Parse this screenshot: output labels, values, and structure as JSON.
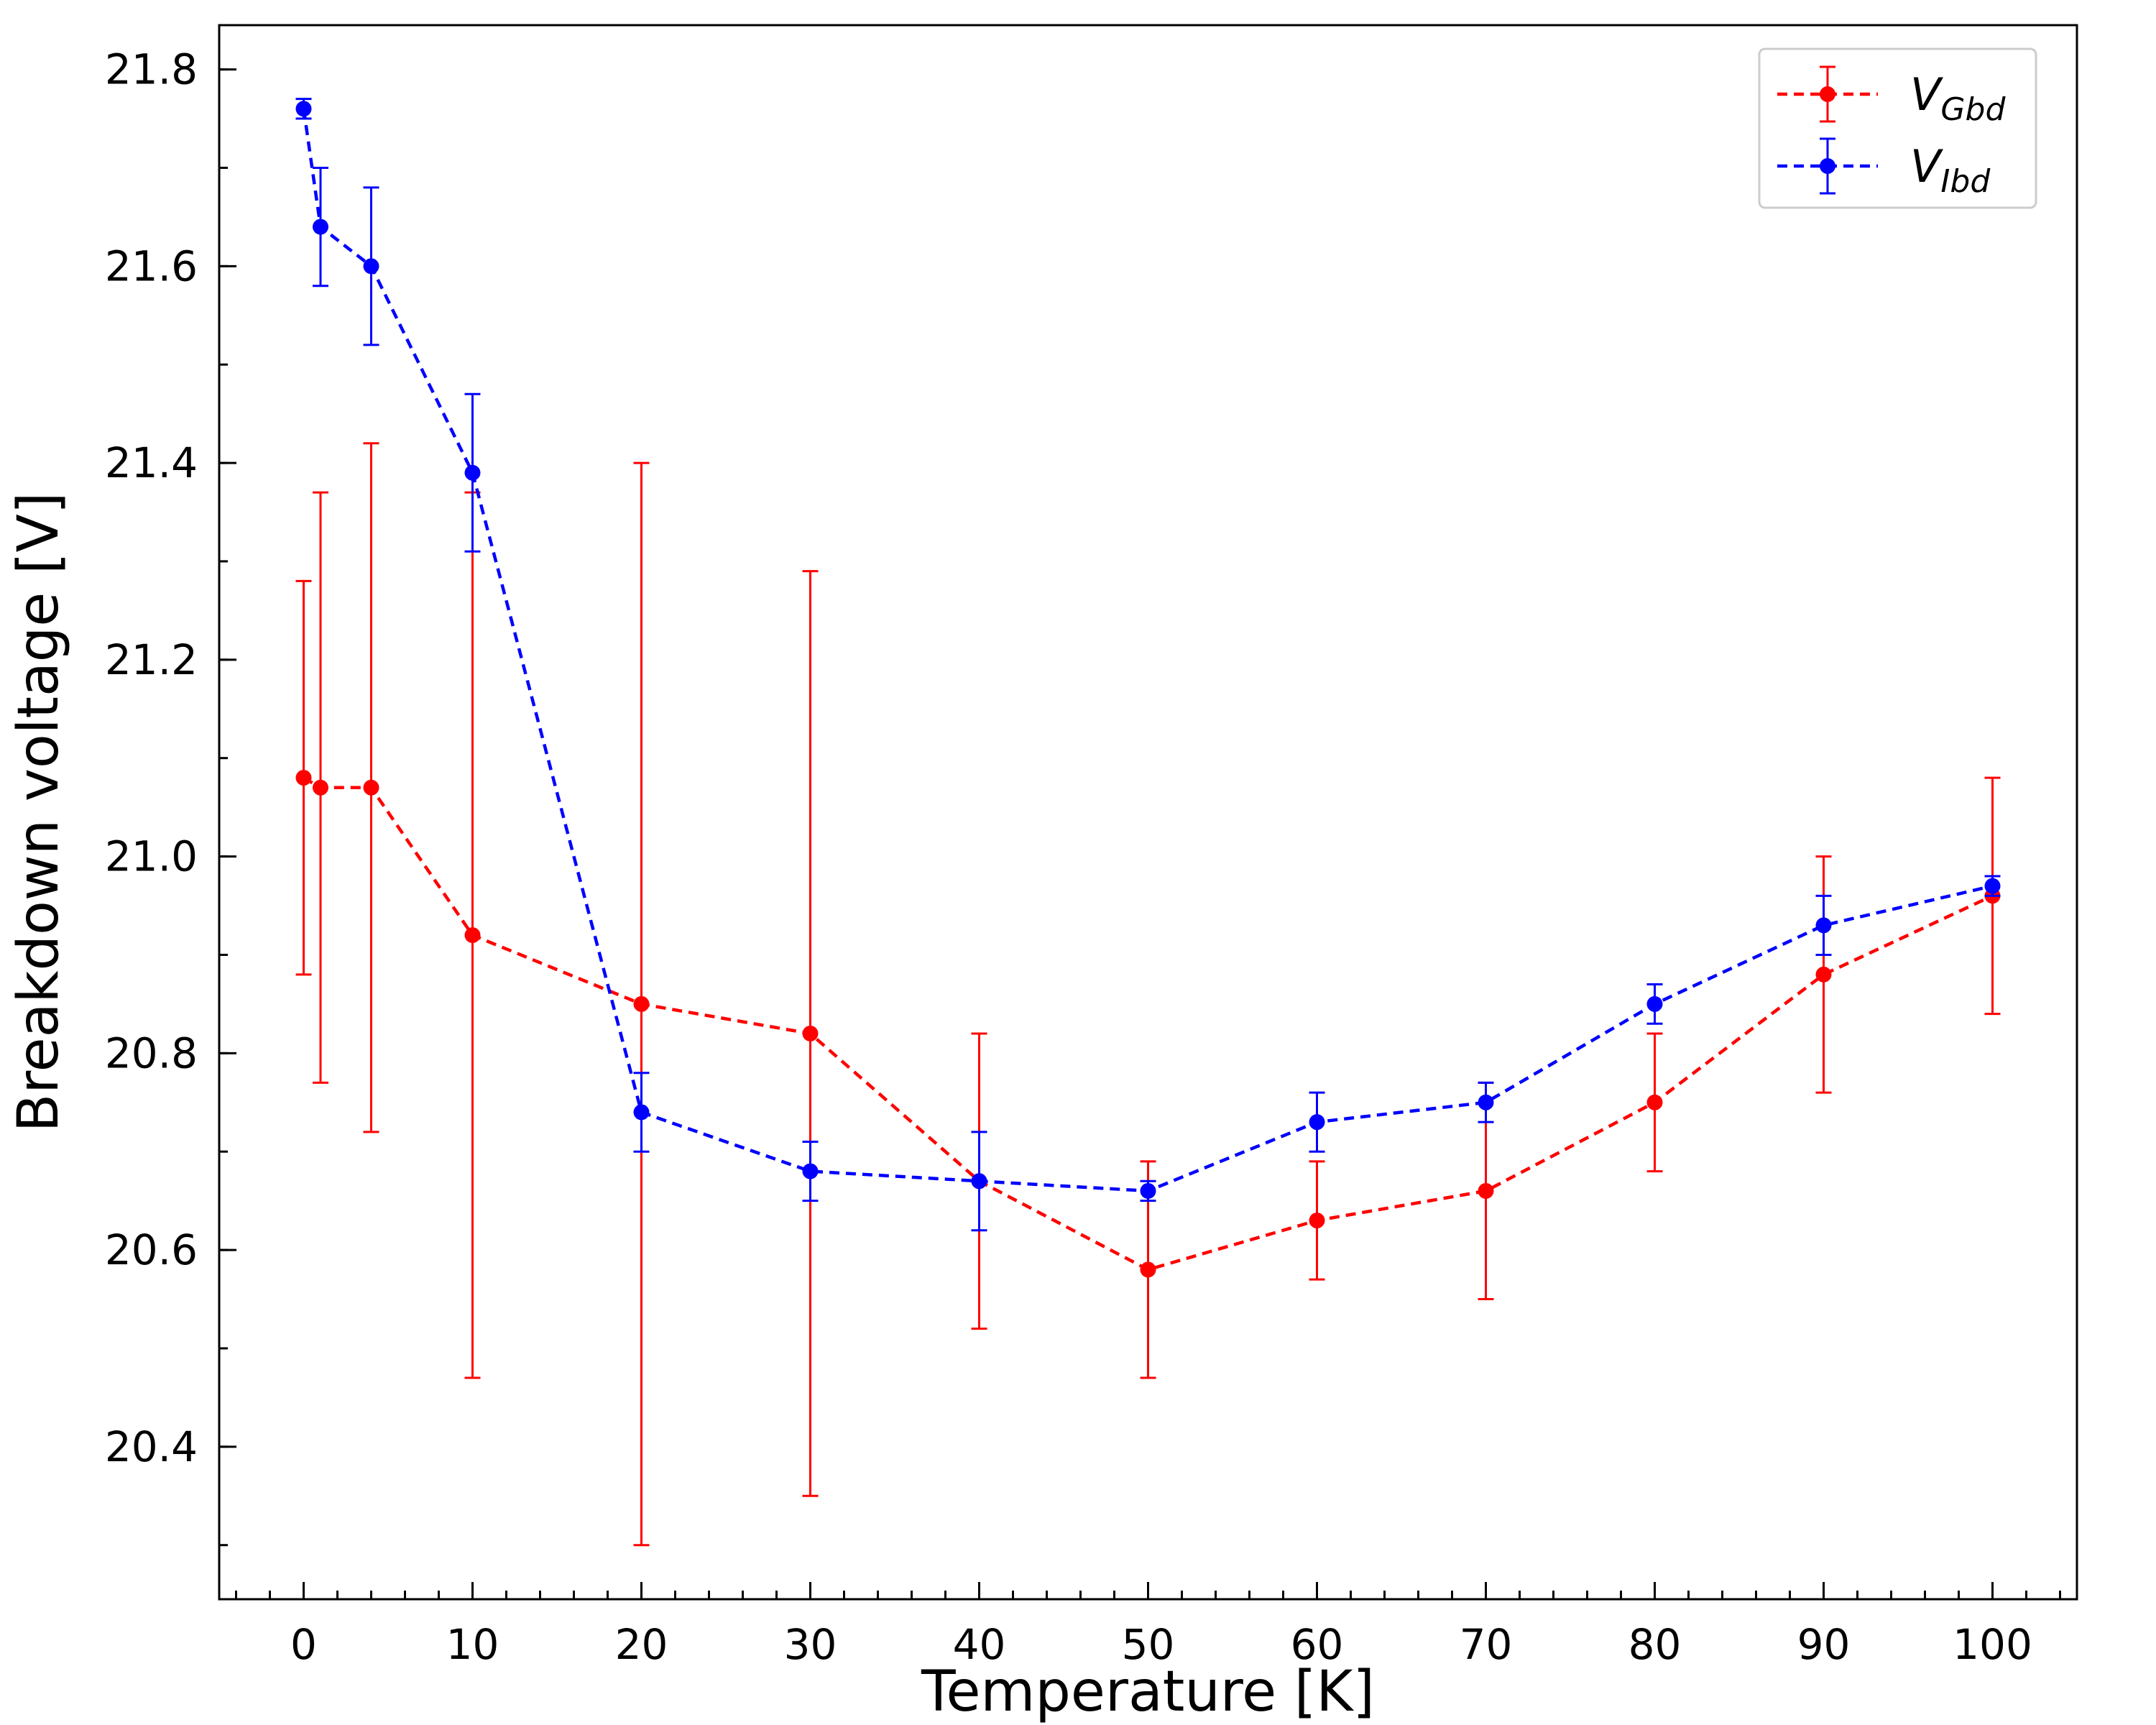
{
  "chart_data": {
    "type": "line",
    "xlabel": "Temperature [K]",
    "ylabel": "Breakdown voltage [V]",
    "xlim": [
      -5,
      105
    ],
    "ylim": [
      20.245,
      21.845
    ],
    "xticks": [
      0,
      10,
      20,
      30,
      40,
      50,
      60,
      70,
      80,
      90,
      100
    ],
    "yticks": [
      20.4,
      20.6,
      20.8,
      21.0,
      21.2,
      21.4,
      21.6,
      21.8
    ],
    "xtick_labels": [
      "0",
      "10",
      "20",
      "30",
      "40",
      "50",
      "60",
      "70",
      "80",
      "90",
      "100"
    ],
    "ytick_labels": [
      "20.4",
      "20.6",
      "20.8",
      "21.0",
      "21.2",
      "21.4",
      "21.6",
      "21.8"
    ],
    "x_minor_step": 2,
    "y_minor_step": 0.1,
    "grid": false,
    "legend_position": "top-right",
    "series": [
      {
        "name": "V_Gbd",
        "label_main": "V",
        "label_sub": "Gbd",
        "color": "#ff0000",
        "line_style": "dashed",
        "x": [
          0,
          1,
          4,
          10,
          20,
          30,
          40,
          50,
          60,
          70,
          80,
          90,
          100
        ],
        "y": [
          21.08,
          21.07,
          21.07,
          20.92,
          20.85,
          20.82,
          20.67,
          20.58,
          20.63,
          20.66,
          20.75,
          20.88,
          20.96
        ],
        "err": [
          0.2,
          0.3,
          0.35,
          0.45,
          0.55,
          0.47,
          0.15,
          0.11,
          0.06,
          0.11,
          0.07,
          0.12,
          0.12
        ]
      },
      {
        "name": "V_Ibd",
        "label_main": "V",
        "label_sub": "Ibd",
        "color": "#0000ff",
        "line_style": "dashed",
        "x": [
          0,
          1,
          4,
          10,
          20,
          30,
          40,
          50,
          60,
          70,
          80,
          90,
          100
        ],
        "y": [
          21.76,
          21.64,
          21.6,
          21.39,
          20.74,
          20.68,
          20.67,
          20.66,
          20.73,
          20.75,
          20.85,
          20.93,
          20.97
        ],
        "err": [
          0.01,
          0.06,
          0.08,
          0.08,
          0.04,
          0.03,
          0.05,
          0.01,
          0.03,
          0.02,
          0.02,
          0.03,
          0.01
        ]
      }
    ]
  }
}
